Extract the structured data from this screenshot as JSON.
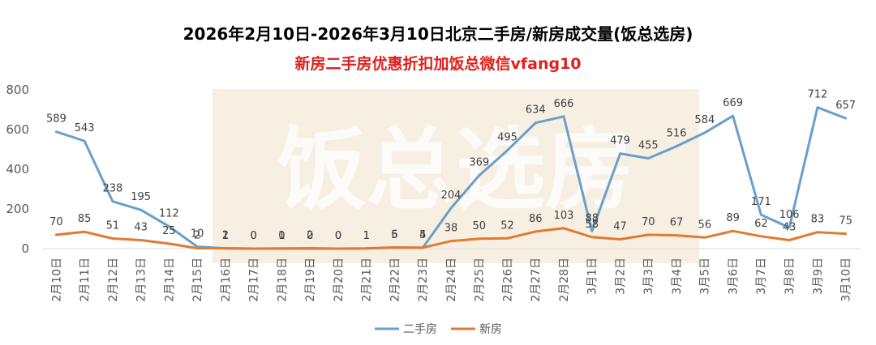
{
  "title": "2026年2月10日-2026年3月10日北京二手房/新房成交量(饭总选房)",
  "subtitle": "新房二手房优惠折扣加饭总微信vfang10",
  "watermark": "饭总选房",
  "colors": {
    "series_second_hand": "#6a9fc9",
    "series_new": "#e07b30",
    "subtitle": "#e0201c"
  },
  "chart_data": {
    "type": "line",
    "title": "2026年2月10日-2026年3月10日北京二手房/新房成交量(饭总选房)",
    "categories": [
      "2月10日",
      "2月11日",
      "2月12日",
      "2月13日",
      "2月14日",
      "2月15日",
      "2月16日",
      "2月17日",
      "2月18日",
      "2月19日",
      "2月20日",
      "2月21日",
      "2月22日",
      "2月23日",
      "2月24日",
      "2月25日",
      "2月26日",
      "2月27日",
      "2月28日",
      "3月1日",
      "3月2日",
      "3月3日",
      "3月4日",
      "3月5日",
      "3月6日",
      "3月7日",
      "3月8日",
      "3月9日",
      "3月10日"
    ],
    "series": [
      {
        "name": "二手房",
        "values": [
          589,
          543,
          238,
          195,
          112,
          10,
          1,
          0,
          1,
          0,
          0,
          1,
          5,
          4,
          204,
          369,
          495,
          634,
          666,
          88,
          479,
          455,
          516,
          584,
          669,
          171,
          106,
          712,
          657
        ]
      },
      {
        "name": "新房",
        "values": [
          70,
          85,
          51,
          43,
          25,
          2,
          2,
          0,
          0,
          2,
          0,
          1,
          6,
          5,
          38,
          50,
          52,
          86,
          103,
          58,
          47,
          70,
          67,
          56,
          89,
          62,
          43,
          83,
          75
        ]
      }
    ],
    "ylim": [
      0,
      800
    ],
    "yticks": [
      0,
      200,
      400,
      600,
      800
    ],
    "legend_position": "bottom-center"
  }
}
